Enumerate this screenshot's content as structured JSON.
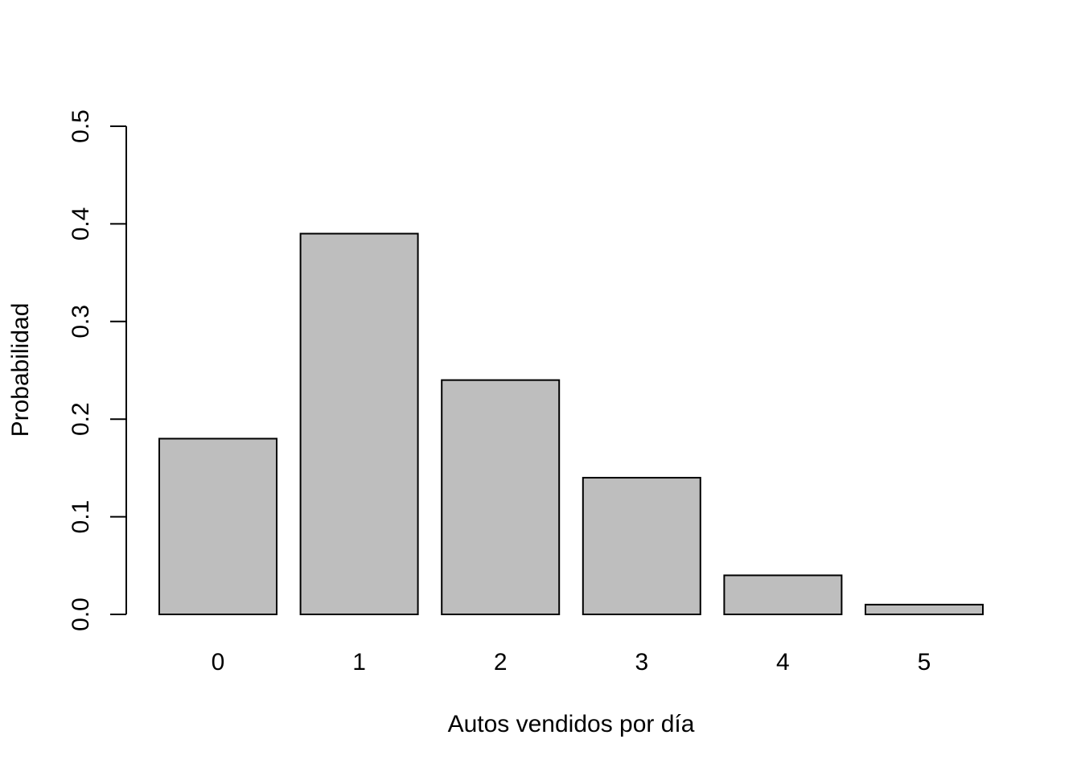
{
  "chart_data": {
    "type": "bar",
    "title": "",
    "xlabel": "Autos vendidos por día",
    "ylabel": "Probabilidad",
    "categories": [
      "0",
      "1",
      "2",
      "3",
      "4",
      "5"
    ],
    "values": [
      0.18,
      0.39,
      0.24,
      0.14,
      0.04,
      0.01
    ],
    "ylim": [
      0,
      0.5
    ],
    "yticks": [
      0.0,
      0.1,
      0.2,
      0.3,
      0.4,
      0.5
    ],
    "ytick_labels": [
      "0.0",
      "0.1",
      "0.2",
      "0.3",
      "0.4",
      "0.5"
    ],
    "grid": false,
    "legend": "none",
    "bar_color": "#bebebe",
    "bar_edge_color": "#000000"
  }
}
